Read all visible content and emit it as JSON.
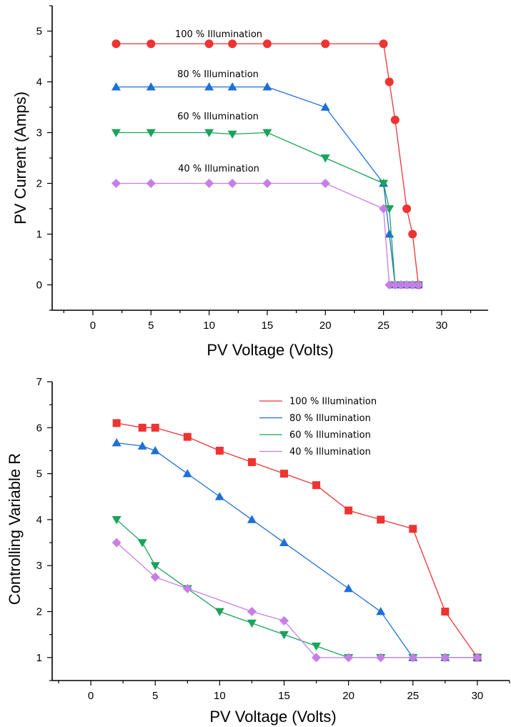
{
  "chart_data": [
    {
      "type": "line",
      "xlabel": "PV Voltage (Volts)",
      "ylabel": "PV Current (Amps)",
      "xlim": [
        -3.5,
        34
      ],
      "ylim": [
        -0.5,
        5.5
      ],
      "x_ticks": [
        0,
        5,
        10,
        15,
        20,
        25,
        30
      ],
      "y_ticks": [
        0,
        1,
        2,
        3,
        4,
        5
      ],
      "grid": false,
      "legend": "inline-labels",
      "series": [
        {
          "name": "100 % Illumination",
          "color": "#ee3333",
          "marker": "circle",
          "x": [
            2,
            5,
            10,
            12,
            15,
            20,
            25,
            25.5,
            26,
            27,
            27.5,
            28
          ],
          "y": [
            4.75,
            4.75,
            4.75,
            4.75,
            4.75,
            4.75,
            4.75,
            4.0,
            3.25,
            1.5,
            1.0,
            0
          ]
        },
        {
          "name": "80 % Illumination",
          "color": "#1f6fd6",
          "marker": "triangle-up",
          "x": [
            2,
            5,
            10,
            12,
            15,
            20,
            25,
            25.5,
            26,
            26.5,
            27,
            27.5,
            28
          ],
          "y": [
            3.9,
            3.9,
            3.9,
            3.9,
            3.9,
            3.5,
            2.0,
            1.0,
            0,
            0,
            0,
            0,
            0
          ]
        },
        {
          "name": "60 % Illumination",
          "color": "#1aa35a",
          "marker": "triangle-down",
          "x": [
            2,
            5,
            10,
            12,
            15,
            20,
            25,
            25.5,
            26,
            26.5,
            27,
            27.5,
            28
          ],
          "y": [
            3.0,
            3.0,
            3.0,
            2.97,
            3.0,
            2.5,
            2.0,
            1.5,
            0,
            0,
            0,
            0,
            0
          ]
        },
        {
          "name": "40 % Illumination",
          "color": "#c77ee6",
          "marker": "diamond",
          "x": [
            2,
            5,
            10,
            12,
            15,
            20,
            25,
            25.5,
            26,
            26.5,
            27,
            27.5,
            28
          ],
          "y": [
            2.0,
            2.0,
            2.0,
            2.0,
            2.0,
            2.0,
            1.5,
            0,
            0,
            0,
            0,
            0,
            0
          ]
        }
      ]
    },
    {
      "type": "line",
      "xlabel": "PV Voltage (Volts)",
      "ylabel": "Controlling Variable R",
      "xlim": [
        -3,
        32.5
      ],
      "ylim": [
        0.5,
        7
      ],
      "x_ticks": [
        0,
        5,
        10,
        15,
        20,
        25,
        30
      ],
      "y_ticks": [
        1,
        2,
        3,
        4,
        5,
        6,
        7
      ],
      "grid": false,
      "legend": "top-right",
      "series": [
        {
          "name": "100 % Illumination",
          "color": "#ee3333",
          "marker": "square",
          "x": [
            2,
            4,
            5,
            7.5,
            10,
            12.5,
            15,
            17.5,
            20,
            22.5,
            25,
            27.5,
            30
          ],
          "y": [
            6.1,
            6.0,
            6.0,
            5.8,
            5.5,
            5.25,
            5.0,
            4.75,
            4.2,
            4.0,
            3.8,
            2.0,
            1.0
          ]
        },
        {
          "name": "80 % Illumination",
          "color": "#1f6fd6",
          "marker": "triangle-up",
          "x": [
            2,
            4,
            5,
            7.5,
            10,
            12.5,
            15,
            20,
            22.5,
            25,
            27.5,
            30
          ],
          "y": [
            5.67,
            5.6,
            5.5,
            5.0,
            4.5,
            4.0,
            3.5,
            2.5,
            2.0,
            1.0,
            1.0,
            1.0
          ]
        },
        {
          "name": "60 % Illumination",
          "color": "#1aa35a",
          "marker": "triangle-down",
          "x": [
            2,
            4,
            5,
            7.5,
            10,
            12.5,
            15,
            17.5,
            20,
            22.5,
            25,
            27.5,
            30
          ],
          "y": [
            4.0,
            3.5,
            3.0,
            2.5,
            2.0,
            1.75,
            1.5,
            1.25,
            1.0,
            1.0,
            1.0,
            1.0,
            1.0
          ]
        },
        {
          "name": "40 % Illumination",
          "color": "#c77ee6",
          "marker": "diamond",
          "x": [
            2,
            5,
            7.5,
            12.5,
            15,
            17.5,
            20,
            22.5,
            25,
            27.5,
            30
          ],
          "y": [
            3.5,
            2.75,
            2.5,
            2.0,
            1.8,
            1.0,
            1.0,
            1.0,
            1.0,
            1.0,
            1.0
          ]
        }
      ]
    }
  ]
}
